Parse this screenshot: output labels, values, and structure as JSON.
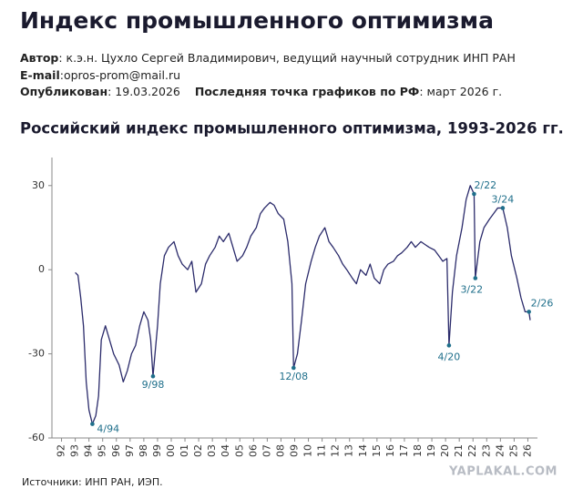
{
  "header": {
    "title": "Индекс промышленного оптимизма",
    "meta": [
      {
        "label": "Автор",
        "text": ": к.э.н. Цухло Сергей Владимирович, ведущий научный сотрудник ИНП РАН"
      },
      {
        "label": "E-mail",
        "text": ":opros-prom@mail.ru"
      },
      {
        "label": "Опубликован",
        "text": ": 19.03.2026",
        "label2": "Последняя точка графиков по РФ",
        "text2": ": март 2026 г."
      }
    ]
  },
  "chart_data": {
    "type": "line",
    "title": "Российский индекс промышленного оптимизма, 1993-2026 гг.",
    "color": "#2b2b6b",
    "x": [
      1993.0,
      1993.2,
      1993.4,
      1993.6,
      1993.8,
      1994.0,
      1994.25,
      1994.5,
      1994.7,
      1994.9,
      1995.2,
      1995.5,
      1995.8,
      1996.2,
      1996.5,
      1996.8,
      1997.1,
      1997.4,
      1997.7,
      1998.0,
      1998.3,
      1998.5,
      1998.67,
      1999.0,
      1999.2,
      1999.5,
      1999.8,
      2000.2,
      2000.5,
      2000.8,
      2001.2,
      2001.5,
      2001.8,
      2002.2,
      2002.5,
      2002.8,
      2003.2,
      2003.5,
      2003.8,
      2004.2,
      2004.5,
      2004.8,
      2005.2,
      2005.5,
      2005.8,
      2006.2,
      2006.5,
      2006.8,
      2007.2,
      2007.5,
      2007.8,
      2008.2,
      2008.5,
      2008.8,
      2008.92,
      2009.2,
      2009.5,
      2009.8,
      2010.2,
      2010.5,
      2010.8,
      2011.2,
      2011.5,
      2011.8,
      2012.2,
      2012.5,
      2012.8,
      2013.2,
      2013.5,
      2013.8,
      2014.2,
      2014.5,
      2014.8,
      2015.2,
      2015.5,
      2015.8,
      2016.2,
      2016.5,
      2016.8,
      2017.2,
      2017.5,
      2017.8,
      2018.2,
      2018.5,
      2018.8,
      2019.2,
      2019.5,
      2019.8,
      2020.1,
      2020.25,
      2020.5,
      2020.8,
      2021.2,
      2021.5,
      2021.8,
      2022.08,
      2022.17,
      2022.5,
      2022.8,
      2023.2,
      2023.5,
      2023.8,
      2024.17,
      2024.5,
      2024.8,
      2025.2,
      2025.5,
      2025.8,
      2026.08,
      2026.17
    ],
    "values": [
      -1,
      -2,
      -10,
      -20,
      -40,
      -50,
      -55,
      -52,
      -45,
      -25,
      -20,
      -25,
      -30,
      -34,
      -40,
      -36,
      -30,
      -27,
      -20,
      -15,
      -18,
      -25,
      -38,
      -20,
      -5,
      5,
      8,
      10,
      5,
      2,
      0,
      3,
      -8,
      -5,
      2,
      5,
      8,
      12,
      10,
      13,
      8,
      3,
      5,
      8,
      12,
      15,
      20,
      22,
      24,
      23,
      20,
      18,
      10,
      -5,
      -35,
      -30,
      -18,
      -5,
      3,
      8,
      12,
      15,
      10,
      8,
      5,
      2,
      0,
      -3,
      -5,
      0,
      -2,
      2,
      -3,
      -5,
      0,
      2,
      3,
      5,
      6,
      8,
      10,
      8,
      10,
      9,
      8,
      7,
      5,
      3,
      4,
      -27,
      -8,
      5,
      15,
      25,
      30,
      27,
      -3,
      10,
      15,
      18,
      20,
      22,
      22,
      15,
      5,
      -3,
      -10,
      -15,
      -15,
      -18
    ],
    "xlim": [
      1991.3,
      2026.7
    ],
    "ylim": [
      -60,
      40
    ],
    "yticks": [
      30,
      0,
      -30,
      -60
    ],
    "xticks": [
      {
        "value": 1992,
        "label": "92"
      },
      {
        "value": 1993,
        "label": "93"
      },
      {
        "value": 1994,
        "label": "94"
      },
      {
        "value": 1995,
        "label": "95"
      },
      {
        "value": 1996,
        "label": "96"
      },
      {
        "value": 1997,
        "label": "97"
      },
      {
        "value": 1998,
        "label": "98"
      },
      {
        "value": 1999,
        "label": "99"
      },
      {
        "value": 2000,
        "label": "00"
      },
      {
        "value": 2001,
        "label": "01"
      },
      {
        "value": 2002,
        "label": "02"
      },
      {
        "value": 2003,
        "label": "03"
      },
      {
        "value": 2004,
        "label": "04"
      },
      {
        "value": 2005,
        "label": "05"
      },
      {
        "value": 2006,
        "label": "06"
      },
      {
        "value": 2007,
        "label": "07"
      },
      {
        "value": 2008,
        "label": "08"
      },
      {
        "value": 2009,
        "label": "09"
      },
      {
        "value": 2010,
        "label": "10"
      },
      {
        "value": 2011,
        "label": "11"
      },
      {
        "value": 2012,
        "label": "12"
      },
      {
        "value": 2013,
        "label": "13"
      },
      {
        "value": 2014,
        "label": "14"
      },
      {
        "value": 2015,
        "label": "15"
      },
      {
        "value": 2016,
        "label": "16"
      },
      {
        "value": 2017,
        "label": "17"
      },
      {
        "value": 2018,
        "label": "18"
      },
      {
        "value": 2019,
        "label": "19"
      },
      {
        "value": 2020,
        "label": "20"
      },
      {
        "value": 2021,
        "label": "21"
      },
      {
        "value": 2022,
        "label": "22"
      },
      {
        "value": 2023,
        "label": "23"
      },
      {
        "value": 2024,
        "label": "24"
      },
      {
        "value": 2025,
        "label": "25"
      },
      {
        "value": 2026,
        "label": "26"
      }
    ],
    "annotations": [
      {
        "x": 1994.25,
        "y": -55,
        "label": "4/94"
      },
      {
        "x": 1998.67,
        "y": -38,
        "label": "9/98"
      },
      {
        "x": 2008.92,
        "y": -35,
        "label": "12/08"
      },
      {
        "x": 2020.25,
        "y": -27,
        "label": "4/20"
      },
      {
        "x": 2022.08,
        "y": 27,
        "label": "2/22"
      },
      {
        "x": 2022.17,
        "y": -3,
        "label": "3/22"
      },
      {
        "x": 2024.17,
        "y": 22,
        "label": "3/24"
      },
      {
        "x": 2026.08,
        "y": -15,
        "label": "2/26"
      }
    ],
    "annotation_color": "#1f6f8b"
  },
  "footer": {
    "source": "Источники: ИНП РАН, ИЭП.",
    "watermark": "YAPLAKAL.COM"
  }
}
